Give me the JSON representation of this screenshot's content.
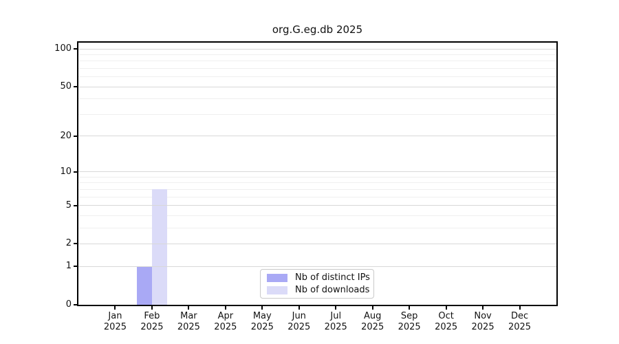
{
  "chart_data": {
    "type": "bar",
    "title": "org.G.eg.db 2025",
    "categories": [
      "Jan",
      "Feb",
      "Mar",
      "Apr",
      "May",
      "Jun",
      "Jul",
      "Aug",
      "Sep",
      "Oct",
      "Nov",
      "Dec"
    ],
    "year_label": "2025",
    "series": [
      {
        "name": "Nb of distinct IPs",
        "color": "#a9a9f5",
        "values": [
          0,
          1,
          0,
          0,
          0,
          0,
          0,
          0,
          0,
          0,
          0,
          0
        ]
      },
      {
        "name": "Nb of downloads",
        "color": "#dbdbf8",
        "values": [
          0,
          7,
          0,
          0,
          0,
          0,
          0,
          0,
          0,
          0,
          0,
          0
        ]
      }
    ],
    "y_axis": {
      "scale": "log1p",
      "ylim": [
        0,
        112
      ],
      "major_ticks": [
        0,
        1,
        2,
        5,
        10,
        20,
        50,
        100
      ],
      "minor_gridlines": [
        3,
        4,
        6,
        7,
        8,
        9,
        30,
        40,
        60,
        70,
        80,
        90
      ]
    },
    "grid": true,
    "legend": {
      "position": "lower-center"
    },
    "colors": {
      "major_gridline": "#d8d8d8",
      "minor_gridline": "#efefef",
      "spine": "#000000",
      "legend_border": "#c9c9c9",
      "text": "#111111"
    }
  }
}
